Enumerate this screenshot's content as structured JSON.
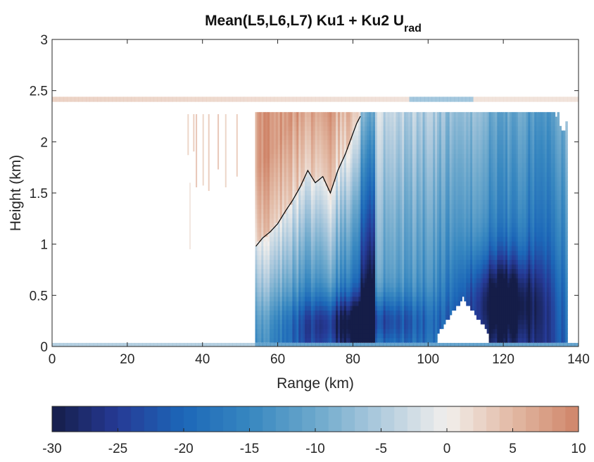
{
  "chart_data": {
    "type": "heatmap",
    "title": "Mean(L5,L6,L7) Ku1 + Ku2  U",
    "title_subscript": "rad",
    "xlabel": "Range (km)",
    "ylabel": "Height (km)",
    "xlim": [
      0,
      140
    ],
    "ylim": [
      0,
      3
    ],
    "xticks": [
      "0",
      "20",
      "40",
      "60",
      "80",
      "100",
      "120",
      "140"
    ],
    "yticks": [
      "0",
      "0.5",
      "1",
      "1.5",
      "2",
      "2.5",
      "3"
    ],
    "grid": false,
    "colorbar": {
      "location": "bottom",
      "range": [
        -30,
        10
      ],
      "ticks": [
        "-30",
        "-25",
        "-20",
        "-15",
        "-10",
        "-5",
        "0",
        "5",
        "10"
      ],
      "colormap": "blue-white-red (diverging)",
      "levels": 40
    },
    "colors": {
      "negative_extreme": "#151d48",
      "negative_mid": "#1c67b8",
      "near_zero": "#f2efec",
      "positive_extreme": "#cf8468",
      "zero_contour": "#000000"
    },
    "zero_contour": {
      "x": [
        54.2,
        56,
        58,
        60,
        62,
        64,
        66,
        68,
        70,
        72,
        74,
        76,
        78,
        80,
        81,
        82
      ],
      "y": [
        0.98,
        1.06,
        1.12,
        1.2,
        1.32,
        1.43,
        1.56,
        1.72,
        1.6,
        1.66,
        1.5,
        1.72,
        1.88,
        2.08,
        2.18,
        2.25
      ]
    },
    "field_summary": {
      "data_region_x": [
        54,
        137
      ],
      "data_top_km": 2.28,
      "surface_band_km": 2.42,
      "strongest_negative": {
        "x_range": [
          112,
          132
        ],
        "height_range": [
          0,
          0.8
        ],
        "value": -30
      },
      "positive_region": {
        "x_range": [
          54,
          76
        ],
        "height_range": [
          1.0,
          2.28
        ],
        "value": 6
      }
    }
  }
}
